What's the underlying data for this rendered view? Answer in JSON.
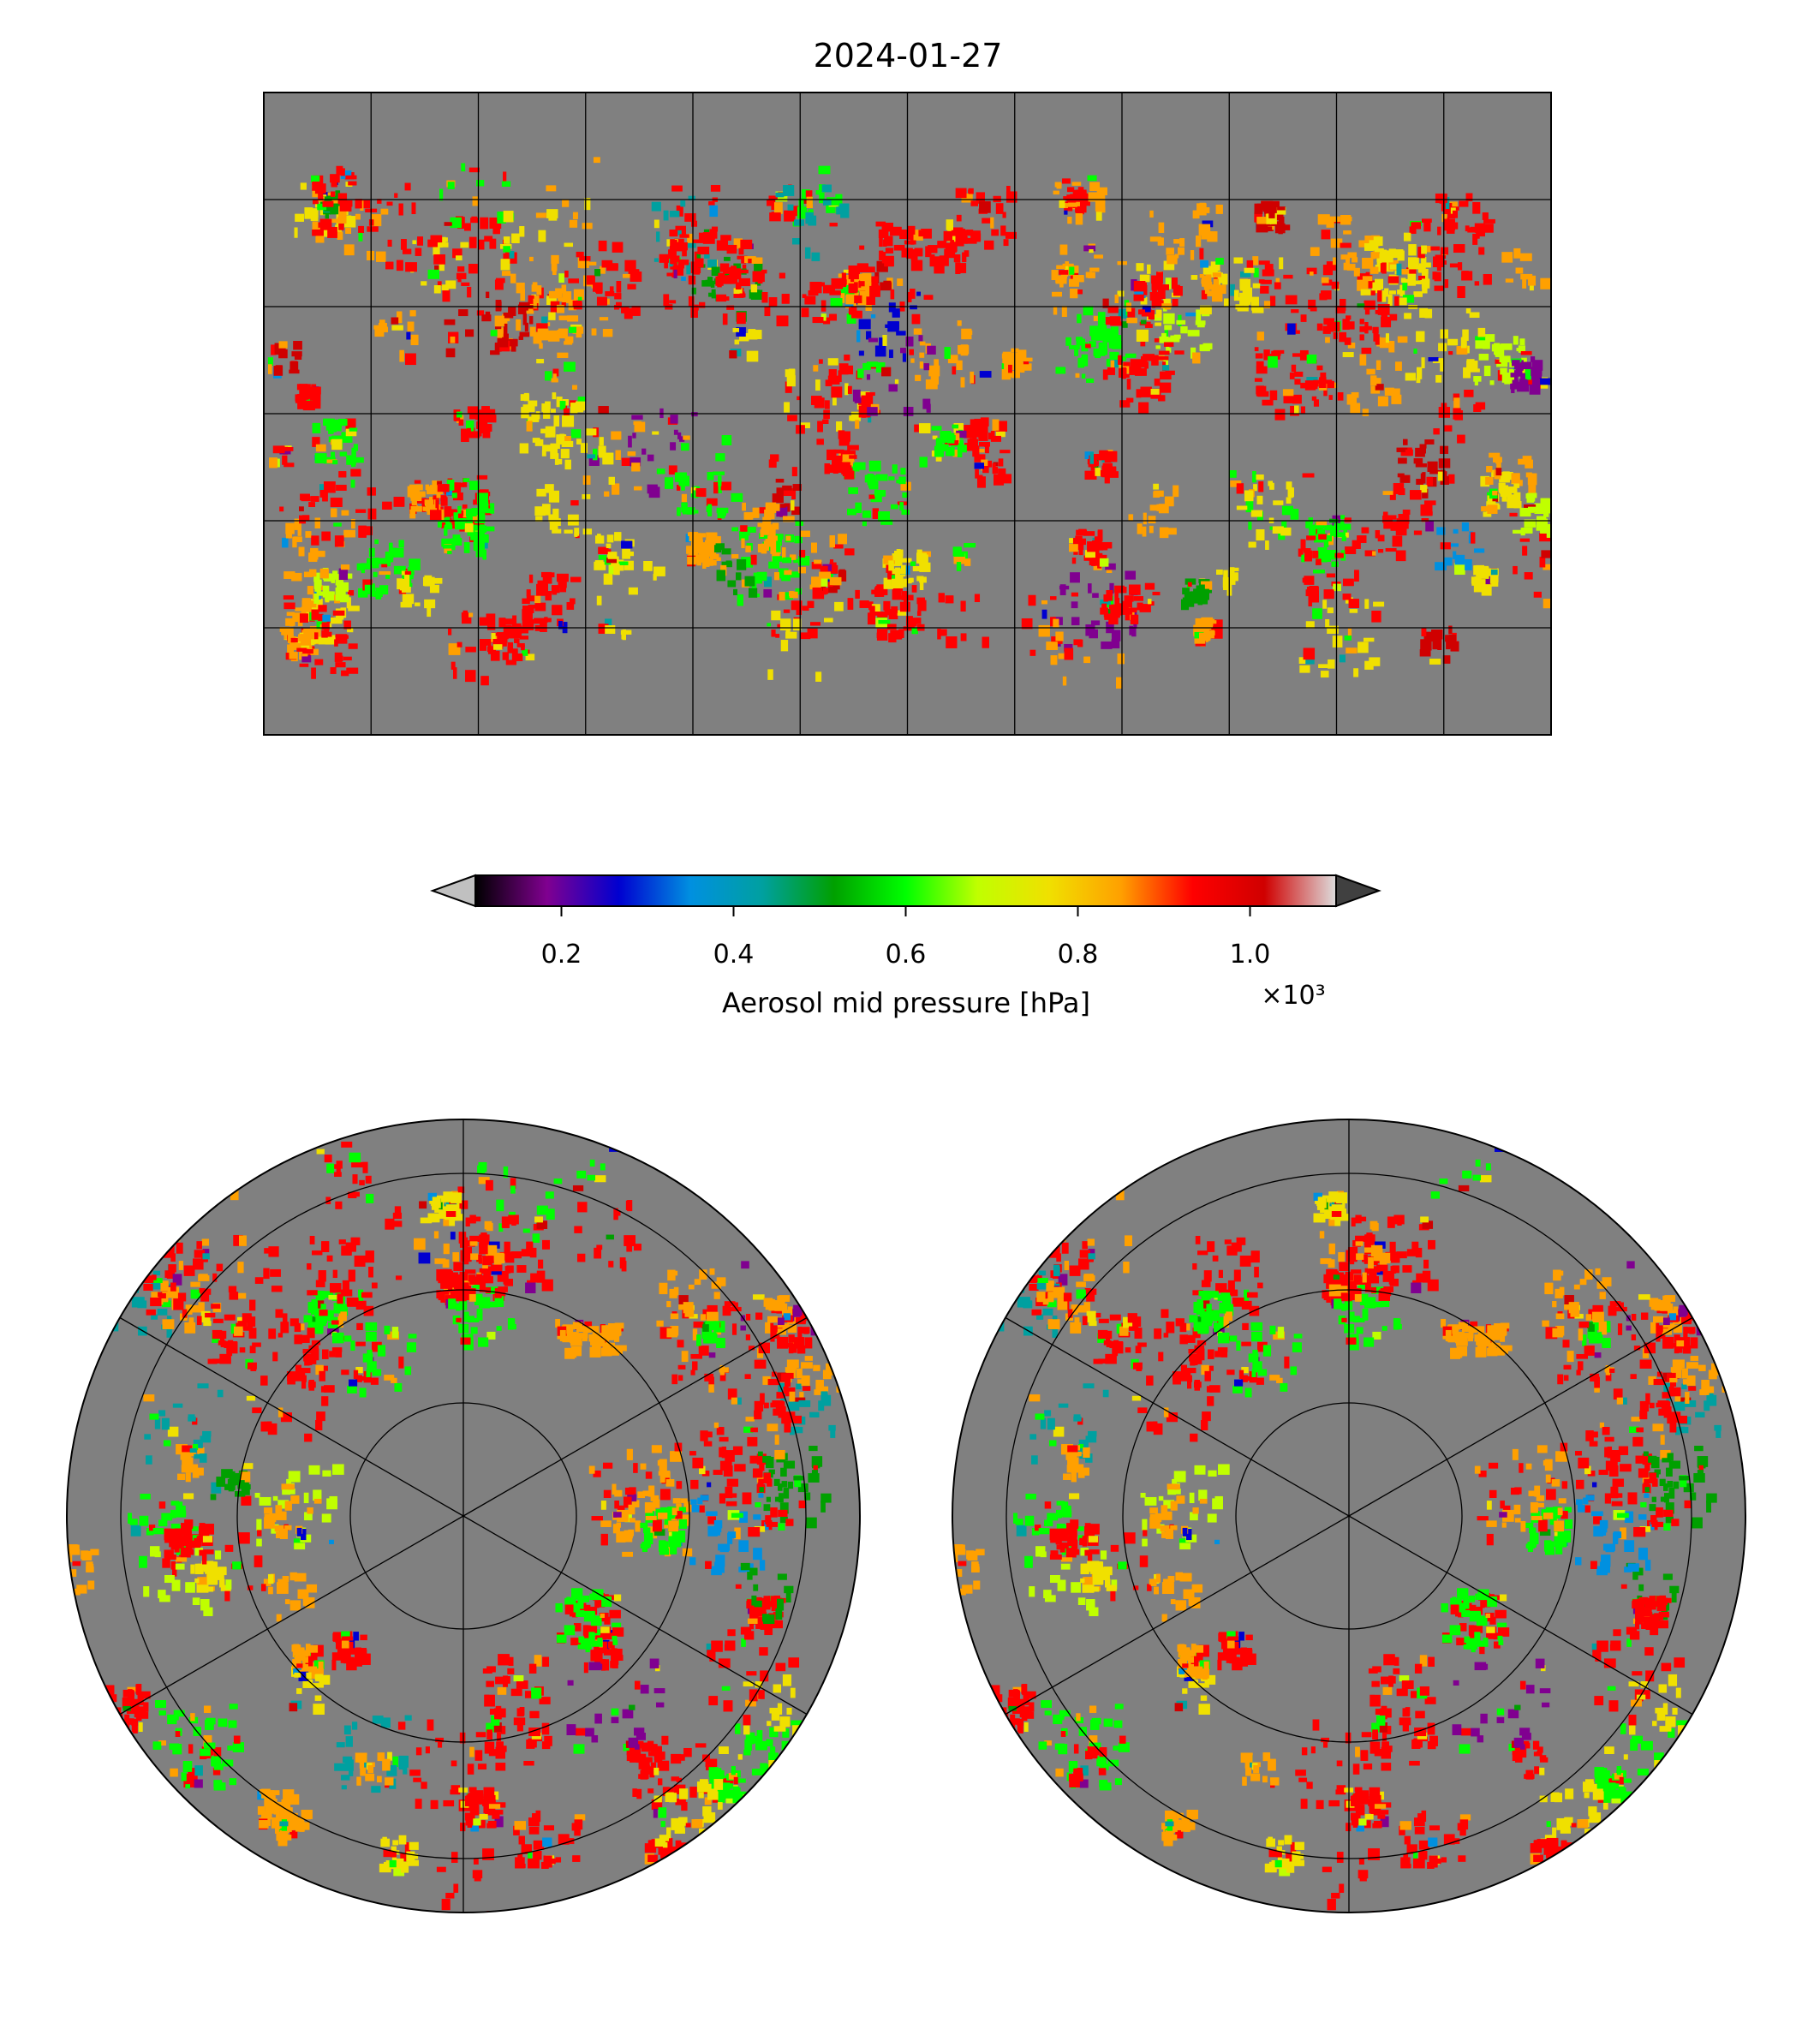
{
  "chart_data": {
    "type": "heatmap",
    "title": "2024-01-27",
    "panels": [
      "global-equirectangular",
      "north-polar-stereographic",
      "south-polar-stereographic"
    ],
    "colorbar": {
      "label": "Aerosol mid pressure [hPa]",
      "multiplier": "×10³",
      "range": [
        100,
        1100
      ],
      "extend": "both",
      "ticks": [
        200,
        400,
        600,
        800,
        1000
      ],
      "tick_labels": [
        "0.2",
        "0.4",
        "0.6",
        "0.8",
        "1.0"
      ],
      "colormap_stops": [
        "#000000",
        "#800090",
        "#0000d0",
        "#0090e0",
        "#00a0a0",
        "#00a000",
        "#00ff00",
        "#c0ff00",
        "#f0e000",
        "#ffa000",
        "#ff0000",
        "#d00000",
        "#dddddd"
      ],
      "under_color": "#c0c0c0",
      "over_color": "#404040",
      "missing_color": "#808080"
    },
    "map_grid": {
      "lon_step_deg": 30,
      "lat_step_deg": 30,
      "polar_meridian_step_deg": 60
    }
  }
}
